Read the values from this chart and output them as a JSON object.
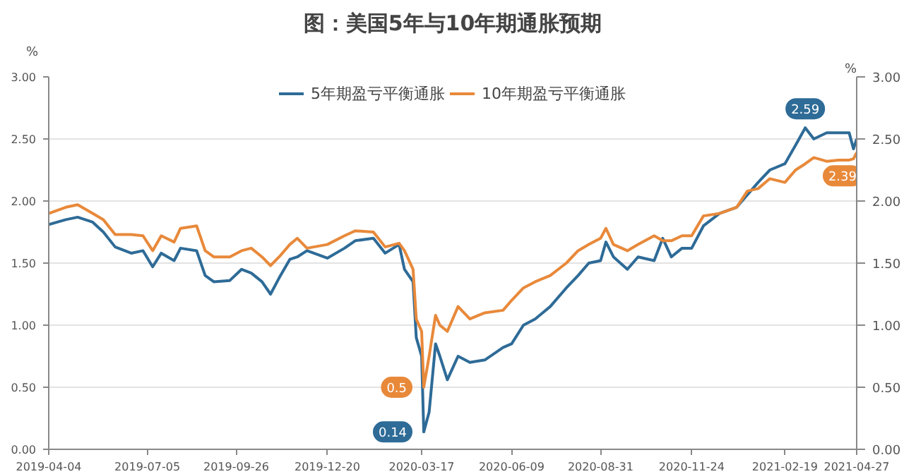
{
  "chart_data": {
    "type": "line",
    "title": "图：美国5年与10年期通胀预期",
    "ylabel": "%",
    "y2label": "%",
    "x": [
      "2019-04-04",
      "2019-04-20",
      "2019-05-01",
      "2019-05-15",
      "2019-05-25",
      "2019-06-05",
      "2019-06-20",
      "2019-07-01",
      "2019-07-10",
      "2019-07-18",
      "2019-07-30",
      "2019-08-05",
      "2019-08-20",
      "2019-08-28",
      "2019-09-05",
      "2019-09-20",
      "2019-10-01",
      "2019-10-10",
      "2019-10-20",
      "2019-10-28",
      "2019-11-05",
      "2019-11-15",
      "2019-11-22",
      "2019-12-01",
      "2019-12-20",
      "2020-01-05",
      "2020-01-15",
      "2020-02-01",
      "2020-02-12",
      "2020-02-25",
      "2020-03-01",
      "2020-03-09",
      "2020-03-12",
      "2020-03-17",
      "2020-03-19",
      "2020-03-24",
      "2020-03-30",
      "2020-04-03",
      "2020-04-10",
      "2020-04-20",
      "2020-05-01",
      "2020-05-15",
      "2020-06-01",
      "2020-06-09",
      "2020-06-20",
      "2020-07-01",
      "2020-07-15",
      "2020-07-30",
      "2020-08-10",
      "2020-08-20",
      "2020-08-31",
      "2020-09-05",
      "2020-09-12",
      "2020-09-25",
      "2020-10-05",
      "2020-10-20",
      "2020-10-28",
      "2020-11-05",
      "2020-11-15",
      "2020-11-24",
      "2020-12-05",
      "2020-12-20",
      "2021-01-05",
      "2021-01-15",
      "2021-01-25",
      "2021-02-05",
      "2021-02-19",
      "2021-03-01",
      "2021-03-10",
      "2021-03-18",
      "2021-03-30",
      "2021-04-10",
      "2021-04-20",
      "2021-04-24",
      "2021-04-27"
    ],
    "series": [
      {
        "name": "5年期盈亏平衡通胀",
        "color": "#2e6b97",
        "values": [
          1.81,
          1.85,
          1.87,
          1.83,
          1.75,
          1.63,
          1.58,
          1.6,
          1.47,
          1.58,
          1.52,
          1.62,
          1.6,
          1.4,
          1.35,
          1.36,
          1.45,
          1.42,
          1.35,
          1.25,
          1.38,
          1.53,
          1.55,
          1.6,
          1.54,
          1.62,
          1.68,
          1.7,
          1.58,
          1.65,
          1.45,
          1.35,
          0.9,
          0.75,
          0.14,
          0.3,
          0.85,
          0.75,
          0.56,
          0.75,
          0.7,
          0.72,
          0.82,
          0.85,
          1.0,
          1.05,
          1.15,
          1.3,
          1.4,
          1.5,
          1.52,
          1.67,
          1.55,
          1.45,
          1.55,
          1.52,
          1.7,
          1.55,
          1.62,
          1.62,
          1.8,
          1.9,
          1.95,
          2.05,
          2.15,
          2.25,
          2.3,
          2.45,
          2.59,
          2.5,
          2.55,
          2.55,
          2.55,
          2.42,
          2.5
        ]
      },
      {
        "name": "10年期盈亏平衡通胀",
        "color": "#e8893a",
        "values": [
          1.9,
          1.95,
          1.97,
          1.9,
          1.85,
          1.73,
          1.73,
          1.72,
          1.6,
          1.72,
          1.67,
          1.78,
          1.8,
          1.6,
          1.55,
          1.55,
          1.6,
          1.62,
          1.55,
          1.48,
          1.55,
          1.65,
          1.7,
          1.62,
          1.65,
          1.72,
          1.76,
          1.75,
          1.63,
          1.66,
          1.6,
          1.45,
          1.05,
          0.95,
          0.5,
          0.75,
          1.08,
          1.0,
          0.95,
          1.15,
          1.05,
          1.1,
          1.12,
          1.2,
          1.3,
          1.35,
          1.4,
          1.5,
          1.6,
          1.65,
          1.7,
          1.78,
          1.65,
          1.6,
          1.65,
          1.72,
          1.68,
          1.68,
          1.72,
          1.72,
          1.88,
          1.9,
          1.95,
          2.08,
          2.1,
          2.18,
          2.15,
          2.25,
          2.3,
          2.35,
          2.32,
          2.33,
          2.33,
          2.34,
          2.39
        ]
      }
    ],
    "annotations": [
      {
        "text": "0.14",
        "x": "2020-03-19",
        "y": 0.14
      },
      {
        "text": "0.5",
        "x": "2020-03-19",
        "y": 0.5
      },
      {
        "text": "2.59",
        "x": "2021-03-10",
        "y": 2.59
      },
      {
        "text": "2.39",
        "x": "2021-04-27",
        "y": 2.39
      }
    ],
    "xlim": [
      "2019-04-04",
      "2021-04-27"
    ],
    "xticks": [
      "2019-04-04",
      "2019-07-05",
      "2019-09-26",
      "2019-12-20",
      "2020-03-17",
      "2020-06-09",
      "2020-08-31",
      "2020-11-24",
      "2021-02-19",
      "2021-04-27"
    ],
    "ylim": [
      0,
      3
    ],
    "yticks": [
      {
        "value": 0,
        "label": "0.00"
      },
      {
        "value": 0.5,
        "label": "0.50"
      },
      {
        "value": 1,
        "label": "1.00"
      },
      {
        "value": 1.5,
        "label": "1.50"
      },
      {
        "value": 2,
        "label": "2.00"
      },
      {
        "value": 2.5,
        "label": "2.50"
      },
      {
        "value": 3,
        "label": "3.00"
      }
    ],
    "y2lim": [
      0,
      3
    ],
    "y2ticks": [
      {
        "value": 0,
        "label": "0.00"
      },
      {
        "value": 0.5,
        "label": "0.50"
      },
      {
        "value": 1,
        "label": "1.00"
      },
      {
        "value": 1.5,
        "label": "1.50"
      },
      {
        "value": 2,
        "label": "2.00"
      },
      {
        "value": 2.5,
        "label": "2.50"
      },
      {
        "value": 3,
        "label": "3.00"
      }
    ],
    "grid": "y",
    "legend": "top",
    "marker": "none",
    "line_style": "solid"
  }
}
